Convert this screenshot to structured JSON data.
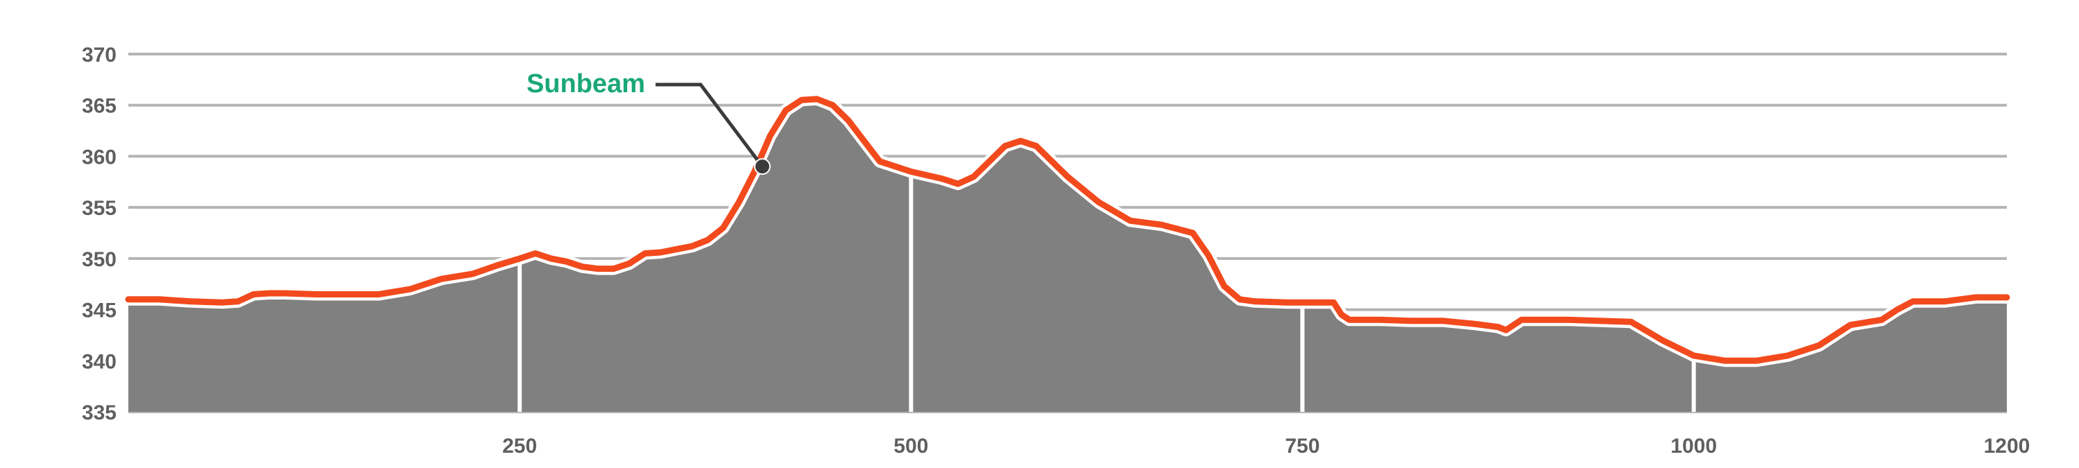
{
  "chart_data": {
    "type": "area",
    "title": "",
    "xlabel": "",
    "ylabel": "",
    "xlim": [
      0,
      1200
    ],
    "ylim": [
      335,
      370
    ],
    "x_ticks": [
      250,
      500,
      750,
      1000,
      1200
    ],
    "x_tick_labels": [
      "250",
      "500",
      "750",
      "1000",
      "1200"
    ],
    "y_ticks": [
      335,
      340,
      345,
      350,
      355,
      360,
      365,
      370
    ],
    "y_tick_labels": [
      "335",
      "340",
      "345",
      "350",
      "355",
      "360",
      "365",
      "370"
    ],
    "grid": "horizontal",
    "series": [
      {
        "x": [
          0,
          20,
          40,
          60,
          70,
          80,
          90,
          100,
          120,
          140,
          160,
          180,
          190,
          200,
          220,
          235,
          250,
          260,
          270,
          280,
          290,
          300,
          310,
          320,
          330,
          340,
          350,
          360,
          370,
          380,
          390,
          400,
          410,
          420,
          430,
          440,
          450,
          460,
          470,
          480,
          500,
          520,
          530,
          540,
          550,
          560,
          570,
          580,
          590,
          600,
          620,
          640,
          660,
          680,
          690,
          700,
          710,
          720,
          740,
          760,
          770,
          775,
          780,
          800,
          820,
          840,
          860,
          875,
          880,
          890,
          900,
          920,
          940,
          960,
          980,
          1000,
          1020,
          1040,
          1060,
          1080,
          1100,
          1120,
          1130,
          1140,
          1160,
          1180,
          1200
        ],
        "values": [
          346.0,
          346.0,
          345.8,
          345.7,
          345.8,
          346.5,
          346.6,
          346.6,
          346.5,
          346.5,
          346.5,
          347.0,
          347.5,
          348.0,
          348.5,
          349.3,
          350.0,
          350.5,
          350.0,
          349.7,
          349.2,
          349.0,
          349.0,
          349.5,
          350.5,
          350.6,
          350.9,
          351.2,
          351.8,
          353.0,
          355.5,
          358.5,
          362.0,
          364.5,
          365.5,
          365.6,
          365.0,
          363.5,
          361.5,
          359.5,
          358.5,
          357.8,
          357.3,
          358.0,
          359.5,
          361.0,
          361.5,
          361.0,
          359.5,
          358.0,
          355.5,
          353.7,
          353.3,
          352.5,
          350.3,
          347.3,
          346.0,
          345.8,
          345.7,
          345.7,
          345.7,
          344.5,
          344.0,
          344.0,
          343.9,
          343.9,
          343.6,
          343.3,
          343.0,
          344.0,
          344.0,
          344.0,
          343.9,
          343.8,
          342.0,
          340.5,
          340.0,
          340.0,
          340.5,
          341.5,
          343.5,
          344.0,
          345.0,
          345.8,
          345.8,
          346.2,
          346.2
        ]
      }
    ],
    "annotations": [
      {
        "label": "Sunbeam",
        "x": 405,
        "y": 359.0,
        "color": "#1aa77a"
      }
    ],
    "colors": {
      "area": "#808080",
      "line": "#f24a1d",
      "halo": "#ffffff",
      "grid": "#b4b4b4",
      "vline": "#ffffff",
      "leader": "#3b3b3b"
    }
  }
}
